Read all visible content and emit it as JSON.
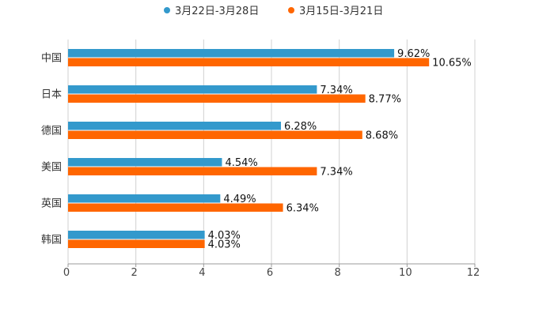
{
  "chart_data": {
    "type": "bar",
    "orientation": "horizontal",
    "title": "",
    "xlabel": "",
    "ylabel": "",
    "categories": [
      "中国",
      "日本",
      "德国",
      "美国",
      "英国",
      "韩国"
    ],
    "series": [
      {
        "name": "3月22日-3月28日",
        "values": [
          9.62,
          7.34,
          6.28,
          4.54,
          4.49,
          4.03
        ],
        "labels": [
          "9.62%",
          "7.34%",
          "6.28%",
          "4.54%",
          "4.49%",
          "4.03%"
        ],
        "color": "#3399cc"
      },
      {
        "name": "3月15日-3月21日",
        "values": [
          10.65,
          8.77,
          8.68,
          7.34,
          6.34,
          4.03
        ],
        "labels": [
          "10.65%",
          "8.77%",
          "8.68%",
          "7.34%",
          "6.34%",
          "4.03%"
        ],
        "color": "#ff6600"
      }
    ],
    "xlim": [
      0,
      12
    ],
    "xticks": [
      "0",
      "2",
      "4",
      "6",
      "8",
      "10",
      "12"
    ],
    "grid": true,
    "legend_position": "top-center"
  }
}
